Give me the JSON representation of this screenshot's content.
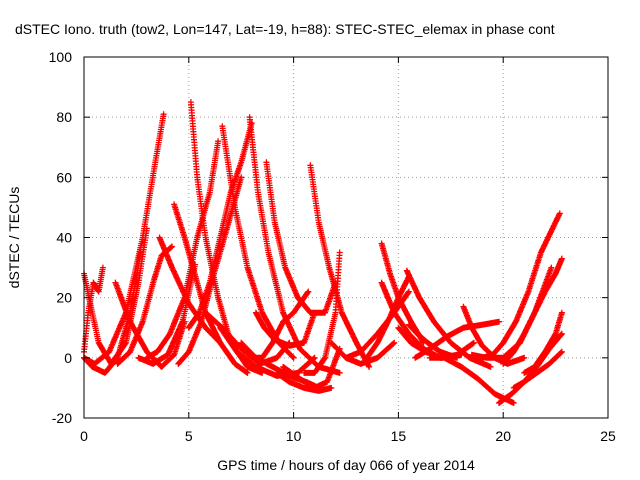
{
  "chart_data": {
    "type": "scatter",
    "title": "dSTEC Iono. truth (tow2, Lon=147, Lat=-19, h=88): STEC-STEC_elemax in phase cont",
    "xlabel": "GPS time / hours of day 066 of year 2014",
    "ylabel": "dSTEC  / TECUs",
    "xlim": [
      0,
      25
    ],
    "ylim": [
      -20,
      100
    ],
    "xticks": [
      0,
      5,
      10,
      15,
      20,
      25
    ],
    "yticks": [
      -20,
      0,
      20,
      40,
      60,
      80,
      100
    ],
    "grid": true,
    "marker": "plus",
    "color": "#ff0000",
    "series": [
      {
        "x": [
          0.0,
          0.3,
          0.7,
          1.3,
          2.0,
          2.6,
          3.0
        ],
        "y": [
          28,
          18,
          5,
          -2,
          5,
          25,
          43
        ]
      },
      {
        "x": [
          0.0,
          0.5,
          1.2,
          2.0,
          2.8,
          3.4,
          3.8
        ],
        "y": [
          0,
          -2,
          2,
          15,
          40,
          65,
          81
        ]
      },
      {
        "x": [
          0.0,
          0.2,
          0.45,
          0.7,
          0.9
        ],
        "y": [
          2,
          15,
          25,
          22,
          30
        ]
      },
      {
        "x": [
          0.0,
          0.4,
          1.0,
          1.6,
          2.2,
          2.7
        ],
        "y": [
          0,
          -3,
          -5,
          0,
          15,
          35
        ]
      },
      {
        "x": [
          1.5,
          2.2,
          3.0,
          3.7,
          4.3,
          4.8
        ],
        "y": [
          25,
          12,
          2,
          -3,
          1,
          12
        ]
      },
      {
        "x": [
          1.6,
          2.2,
          2.8,
          3.3,
          3.7,
          4.2
        ],
        "y": [
          -2,
          2,
          12,
          25,
          34,
          37
        ]
      },
      {
        "x": [
          3.6,
          4.2,
          5.0,
          5.8,
          6.5
        ],
        "y": [
          40,
          30,
          18,
          10,
          5
        ]
      },
      {
        "x": [
          2.6,
          3.3,
          4.0,
          4.7,
          5.3
        ],
        "y": [
          0,
          -2,
          1,
          12,
          31
        ]
      },
      {
        "x": [
          3.0,
          3.5,
          4.1,
          4.8,
          5.4,
          6.0,
          6.4
        ],
        "y": [
          0,
          2,
          8,
          20,
          40,
          55,
          72
        ]
      },
      {
        "x": [
          4.3,
          4.8,
          5.2,
          5.8,
          6.5,
          7.2,
          7.8
        ],
        "y": [
          51,
          40,
          30,
          15,
          5,
          -2,
          -5
        ]
      },
      {
        "x": [
          5.1,
          5.4,
          5.8,
          6.4,
          7.0,
          7.8,
          8.5
        ],
        "y": [
          85,
          60,
          40,
          20,
          5,
          -3,
          -5
        ]
      },
      {
        "x": [
          4.5,
          5.0,
          5.6,
          6.2,
          6.9,
          7.5
        ],
        "y": [
          -2,
          2,
          12,
          28,
          45,
          60
        ]
      },
      {
        "x": [
          5.0,
          5.5,
          6.0,
          6.5,
          7.0,
          7.5,
          8.0
        ],
        "y": [
          10,
          15,
          25,
          40,
          55,
          65,
          78
        ]
      },
      {
        "x": [
          6.6,
          7.2,
          7.8,
          8.5,
          9.3,
          10.0
        ],
        "y": [
          77,
          50,
          30,
          15,
          5,
          0
        ]
      },
      {
        "x": [
          7.9,
          8.3,
          8.8,
          9.5,
          10.3,
          11.2,
          12.2
        ],
        "y": [
          80,
          55,
          35,
          15,
          3,
          -3,
          -5
        ]
      },
      {
        "x": [
          5.8,
          6.6,
          7.5,
          8.4,
          9.2,
          9.8
        ],
        "y": [
          15,
          10,
          3,
          -2,
          0,
          5
        ]
      },
      {
        "x": [
          6.5,
          7.3,
          8.2,
          9.2,
          10.2,
          11.0
        ],
        "y": [
          10,
          2,
          -3,
          -6,
          -5,
          0
        ]
      },
      {
        "x": [
          7.5,
          8.2,
          9.0,
          9.8,
          10.6,
          11.2
        ],
        "y": [
          5,
          0,
          -3,
          -6,
          -8,
          -10
        ]
      },
      {
        "x": [
          8.0,
          8.5,
          9.0,
          9.5,
          10.0,
          10.7
        ],
        "y": [
          0,
          0,
          5,
          12,
          15,
          22
        ]
      },
      {
        "x": [
          8.2,
          8.6,
          9.1,
          9.8,
          10.5,
          11.0
        ],
        "y": [
          15,
          10,
          6,
          4,
          5,
          15
        ]
      },
      {
        "x": [
          8.7,
          9.1,
          9.6,
          10.2,
          10.8,
          11.5,
          12.0
        ],
        "y": [
          65,
          45,
          30,
          20,
          15,
          15,
          25
        ]
      },
      {
        "x": [
          9.2,
          9.8,
          10.5,
          11.2,
          11.8
        ],
        "y": [
          -5,
          -8,
          -10,
          -11,
          -10
        ]
      },
      {
        "x": [
          10.8,
          11.2,
          11.7,
          12.3,
          13.0,
          13.6
        ],
        "y": [
          64,
          45,
          30,
          15,
          5,
          -3
        ]
      },
      {
        "x": [
          9.5,
          10.3,
          11.0,
          11.6,
          12.2
        ],
        "y": [
          -3,
          -7,
          -10,
          -8,
          3
        ]
      },
      {
        "x": [
          10.5,
          11.0,
          11.5,
          12.0,
          12.2
        ],
        "y": [
          -5,
          -5,
          0,
          15,
          35
        ]
      },
      {
        "x": [
          11.8,
          12.5,
          13.2,
          14.0,
          14.8
        ],
        "y": [
          5,
          0,
          -2,
          0,
          5
        ]
      },
      {
        "x": [
          12.5,
          13.2,
          14.0,
          14.8,
          15.5
        ],
        "y": [
          0,
          2,
          8,
          15,
          22
        ]
      },
      {
        "x": [
          13.5,
          14.0,
          14.5,
          15.0,
          15.5
        ],
        "y": [
          0,
          5,
          12,
          20,
          27
        ]
      },
      {
        "x": [
          14.2,
          14.6,
          15.0,
          15.6,
          16.2
        ],
        "y": [
          38,
          28,
          20,
          12,
          5
        ]
      },
      {
        "x": [
          14.2,
          14.8,
          15.5,
          16.2,
          17.0,
          18.0
        ],
        "y": [
          25,
          15,
          8,
          3,
          0,
          1
        ]
      },
      {
        "x": [
          15.5,
          15.9,
          16.4,
          17.0,
          17.8
        ],
        "y": [
          11,
          8,
          5,
          2,
          0
        ]
      },
      {
        "x": [
          15.0,
          15.6,
          16.3,
          17.0,
          17.8,
          18.6
        ],
        "y": [
          10,
          5,
          2,
          0,
          1,
          5
        ]
      },
      {
        "x": [
          15.4,
          16.0,
          16.7,
          17.5,
          18.4,
          19.4
        ],
        "y": [
          29,
          20,
          12,
          5,
          0,
          -3
        ]
      },
      {
        "x": [
          15.8,
          16.5,
          17.3,
          18.1,
          19.0,
          19.8
        ],
        "y": [
          0,
          3,
          7,
          10,
          11,
          12
        ]
      },
      {
        "x": [
          16.5,
          17.2,
          18.0,
          18.8,
          19.6,
          20.5
        ],
        "y": [
          0,
          0,
          -3,
          -7,
          -12,
          -15
        ]
      },
      {
        "x": [
          18.1,
          18.5,
          19.0,
          19.6,
          20.2,
          21.0
        ],
        "y": [
          17,
          10,
          4,
          0,
          -2,
          0
        ]
      },
      {
        "x": [
          18.5,
          19.2,
          20.0,
          20.8,
          21.5,
          22.3
        ],
        "y": [
          1,
          0,
          0,
          5,
          15,
          30
        ]
      },
      {
        "x": [
          19.0,
          19.5,
          20.0,
          20.6,
          21.2,
          21.8,
          22.7
        ],
        "y": [
          0,
          1,
          5,
          12,
          22,
          35,
          48
        ]
      },
      {
        "x": [
          19.8,
          20.4,
          21.0,
          21.6,
          22.2,
          22.8
        ],
        "y": [
          -15,
          -12,
          -8,
          -5,
          -2,
          2
        ]
      },
      {
        "x": [
          20.0,
          20.5,
          21.0,
          21.5,
          22.0,
          22.5,
          22.8
        ],
        "y": [
          -2,
          2,
          8,
          15,
          22,
          28,
          33
        ]
      },
      {
        "x": [
          20.5,
          21.0,
          21.6,
          22.2,
          22.8
        ],
        "y": [
          -10,
          -8,
          -3,
          3,
          8
        ]
      },
      {
        "x": [
          21.0,
          21.5,
          22.0,
          22.5,
          22.8
        ],
        "y": [
          -5,
          -3,
          2,
          8,
          15
        ]
      }
    ]
  }
}
